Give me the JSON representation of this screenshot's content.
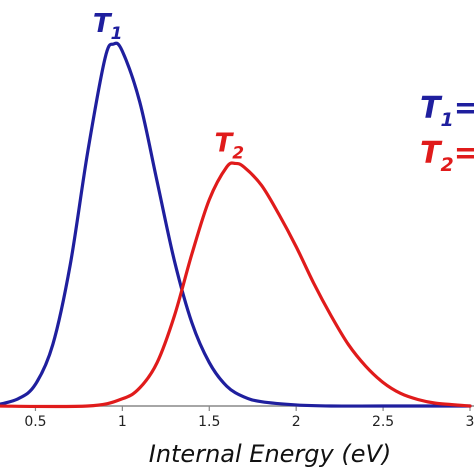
{
  "chart_data": {
    "type": "line",
    "title": "",
    "xlabel": "Internal Energy (eV)",
    "ylabel": "",
    "xlim": [
      0.25,
      3.0
    ],
    "ylim": [
      0,
      1.0
    ],
    "xticks": [
      "0.5",
      "1",
      "1.5",
      "2",
      "2.5",
      "3"
    ],
    "xtick_values": [
      0.5,
      1.0,
      1.5,
      2.0,
      2.5,
      3.0
    ],
    "grid": false,
    "series": [
      {
        "name": "T",
        "name_sub": "1",
        "color": "#1f1f9e",
        "x": [
          0.25,
          0.4,
          0.5,
          0.6,
          0.7,
          0.8,
          0.9,
          0.95,
          1.0,
          1.1,
          1.2,
          1.3,
          1.4,
          1.5,
          1.6,
          1.7,
          1.8,
          2.0,
          2.2,
          2.5,
          3.0
        ],
        "y": [
          0.0,
          0.02,
          0.06,
          0.17,
          0.39,
          0.7,
          0.96,
          1.0,
          0.98,
          0.84,
          0.62,
          0.4,
          0.23,
          0.12,
          0.055,
          0.025,
          0.012,
          0.003,
          0.0,
          0.0,
          0.0
        ]
      },
      {
        "name": "T",
        "name_sub": "2",
        "color": "#e01b1b",
        "x": [
          0.25,
          0.8,
          1.0,
          1.1,
          1.2,
          1.3,
          1.4,
          1.5,
          1.6,
          1.65,
          1.7,
          1.8,
          1.9,
          2.0,
          2.1,
          2.2,
          2.3,
          2.4,
          2.5,
          2.6,
          2.7,
          2.8,
          3.0
        ],
        "y": [
          0.0,
          0.0,
          0.02,
          0.05,
          0.12,
          0.25,
          0.42,
          0.57,
          0.66,
          0.67,
          0.66,
          0.61,
          0.53,
          0.44,
          0.34,
          0.25,
          0.17,
          0.11,
          0.065,
          0.035,
          0.018,
          0.008,
          0.0
        ]
      }
    ],
    "legend": {
      "placement": "top-right",
      "entries": [
        {
          "label": "T",
          "sub": "1",
          "suffix": "=",
          "color": "#1f1f9e"
        },
        {
          "label": "T",
          "sub": "2",
          "suffix": "=",
          "color": "#e01b1b"
        }
      ]
    },
    "peak_labels": [
      {
        "label": "T",
        "sub": "1",
        "color": "#1f1f9e"
      },
      {
        "label": "T",
        "sub": "2",
        "color": "#e01b1b"
      }
    ]
  }
}
